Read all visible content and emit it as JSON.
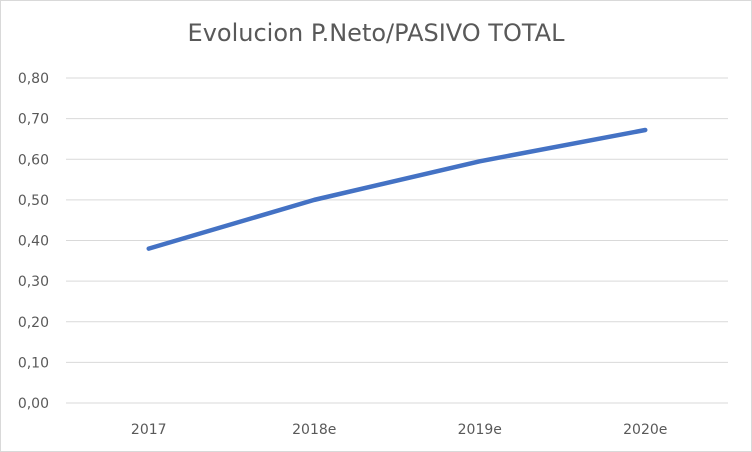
{
  "chart_data": {
    "type": "line",
    "title": "Evolucion P.Neto/PASIVO TOTAL",
    "xlabel": "",
    "ylabel": "",
    "categories": [
      "2017",
      "2018e",
      "2019e",
      "2020e"
    ],
    "series": [
      {
        "values": [
          0.38,
          0.5,
          0.595,
          0.672
        ],
        "color": "#4472c4"
      }
    ],
    "ylim": [
      0,
      0.8
    ],
    "yticks": [
      "0,00",
      "0,10",
      "0,20",
      "0,30",
      "0,40",
      "0,50",
      "0,60",
      "0,70",
      "0,80"
    ],
    "grid": true,
    "legend": "none"
  }
}
